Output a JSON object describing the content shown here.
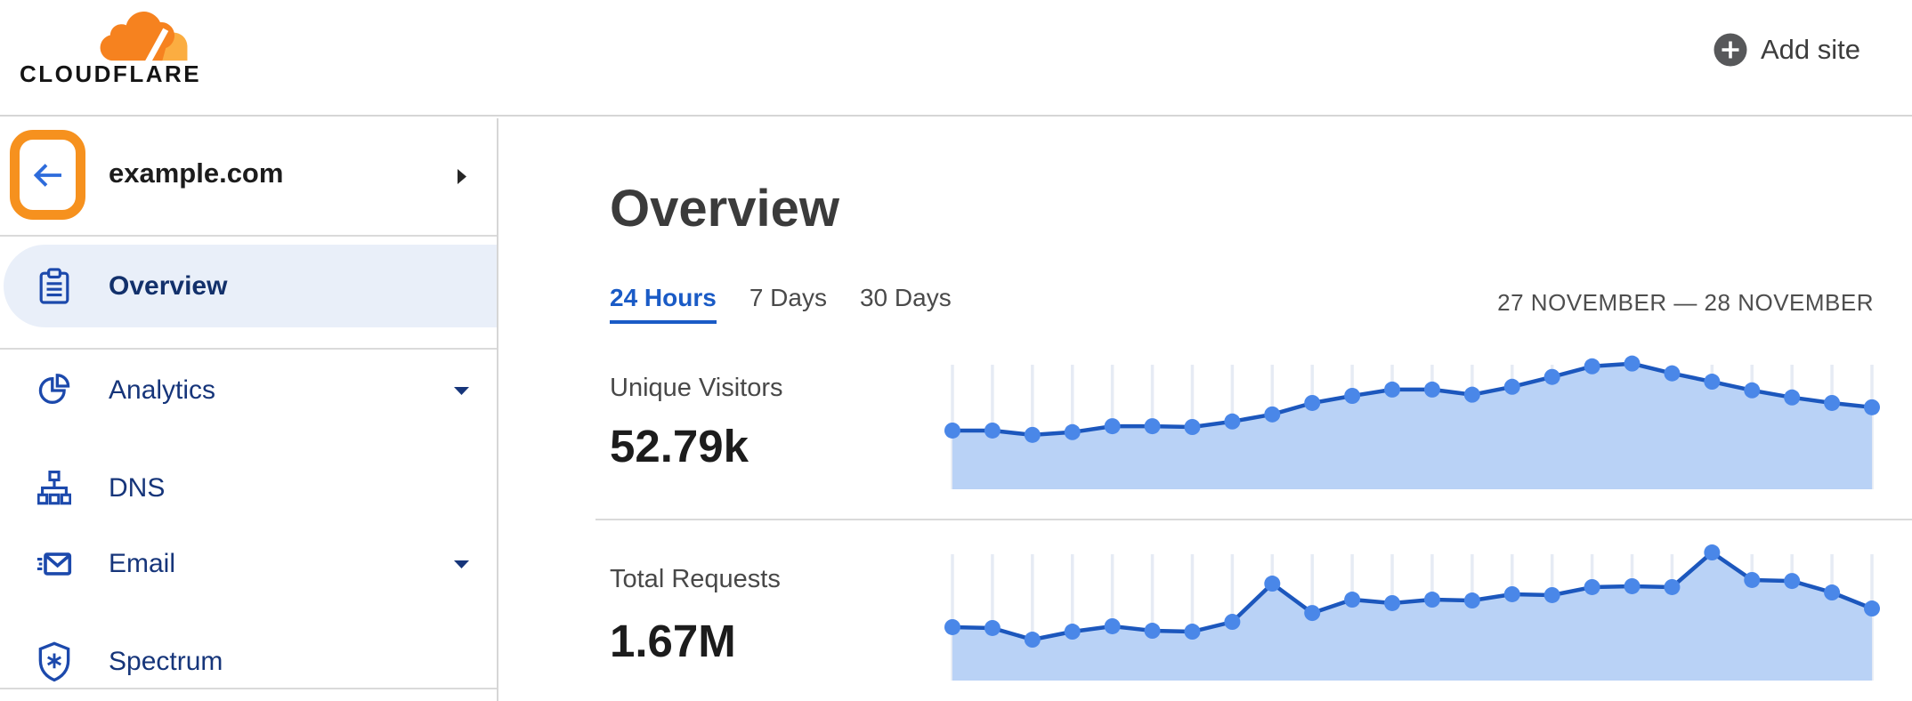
{
  "topbar": {
    "logo_text": "CLOUDFLARE",
    "add_site_label": "Add site"
  },
  "sidebar": {
    "site_name": "example.com",
    "items": [
      {
        "label": "Overview",
        "icon": "clipboard-icon",
        "active": true,
        "expandable": false
      },
      {
        "label": "Analytics",
        "icon": "pie-chart-icon",
        "active": false,
        "expandable": true
      },
      {
        "label": "DNS",
        "icon": "dns-tree-icon",
        "active": false,
        "expandable": false
      },
      {
        "label": "Email",
        "icon": "email-icon",
        "active": false,
        "expandable": true
      },
      {
        "label": "Spectrum",
        "icon": "shield-spark-icon",
        "active": false,
        "expandable": false
      }
    ]
  },
  "main": {
    "title": "Overview",
    "tabs": [
      {
        "label": "24 Hours",
        "active": true
      },
      {
        "label": "7 Days",
        "active": false
      },
      {
        "label": "30 Days",
        "active": false
      }
    ],
    "date_range": "27 NOVEMBER — 28 NOVEMBER",
    "metrics": [
      {
        "label": "Unique Visitors",
        "value": "52.79k"
      },
      {
        "label": "Total Requests",
        "value": "1.67M"
      }
    ]
  },
  "chart_data": [
    {
      "type": "area",
      "title": "Unique Visitors",
      "period": "24 Hours",
      "num_points": 24,
      "total_shown": "52.79k",
      "values": [
        1490,
        1490,
        1380,
        1450,
        1600,
        1600,
        1580,
        1720,
        1900,
        2190,
        2370,
        2530,
        2530,
        2400,
        2600,
        2850,
        3120,
        3190,
        2940,
        2730,
        2510,
        2330,
        2190,
        2080
      ],
      "y_axis_max": 3160,
      "xlabel": "",
      "ylabel": "",
      "grid": "vertical-only",
      "legend": "none"
    },
    {
      "type": "area",
      "title": "Total Requests",
      "period": "24 Hours",
      "num_points": 24,
      "total_shown": "1.67M",
      "values": [
        48700,
        47900,
        37300,
        44600,
        49500,
        45400,
        44600,
        53500,
        88400,
        61600,
        73800,
        70600,
        73800,
        73000,
        78700,
        77900,
        85200,
        86000,
        85200,
        116800,
        91700,
        90800,
        80300,
        65700
      ],
      "y_axis_max": 115200,
      "xlabel": "",
      "ylabel": "",
      "grid": "vertical-only",
      "legend": "none"
    }
  ],
  "colors": {
    "brand_orange": "#f6821f",
    "brand_orange_light": "#fbad41",
    "annotation_orange": "#f6911e",
    "active_blue": "#1a5bc6",
    "nav_navy": "#16357a",
    "nav_icon_blue": "#1c49ac",
    "chart_line": "#1c57bd",
    "chart_dot": "#4a87e8",
    "chart_fill": "#b9d2f6",
    "chart_gridline": "#e6ebf4",
    "active_item_bg": "#e9eff9"
  }
}
